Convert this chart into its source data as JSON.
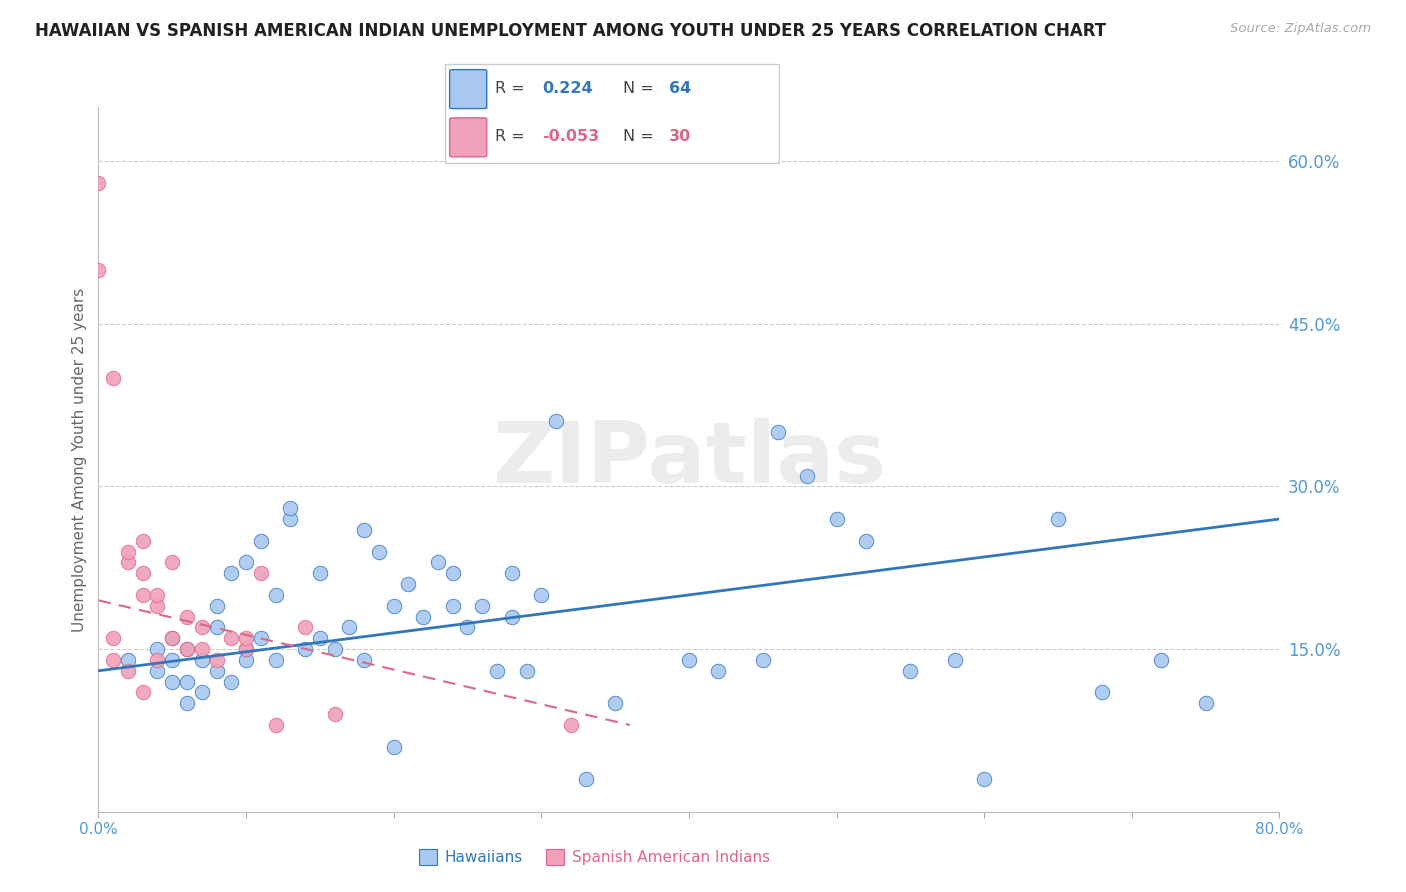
{
  "title": "HAWAIIAN VS SPANISH AMERICAN INDIAN UNEMPLOYMENT AMONG YOUTH UNDER 25 YEARS CORRELATION CHART",
  "source": "Source: ZipAtlas.com",
  "ylabel": "Unemployment Among Youth under 25 years",
  "xlim": [
    0.0,
    0.8
  ],
  "ylim": [
    0.0,
    0.65
  ],
  "yticks_right": [
    0.15,
    0.3,
    0.45,
    0.6
  ],
  "ytick_right_labels": [
    "15.0%",
    "30.0%",
    "45.0%",
    "60.0%"
  ],
  "R_hawaiian": 0.224,
  "N_hawaiian": 64,
  "R_spanish": -0.053,
  "N_spanish": 30,
  "hawaiian_color": "#a8c8f0",
  "spanish_color": "#f0a0b8",
  "trend_hawaiian_color": "#3377bb",
  "trend_spanish_color": "#dd6688",
  "watermark": "ZIPatlas",
  "hawaiians_x": [
    0.02,
    0.04,
    0.04,
    0.05,
    0.05,
    0.05,
    0.06,
    0.06,
    0.06,
    0.07,
    0.07,
    0.08,
    0.08,
    0.08,
    0.09,
    0.09,
    0.1,
    0.1,
    0.1,
    0.11,
    0.11,
    0.12,
    0.12,
    0.13,
    0.13,
    0.14,
    0.15,
    0.15,
    0.16,
    0.17,
    0.18,
    0.18,
    0.19,
    0.2,
    0.2,
    0.21,
    0.22,
    0.23,
    0.24,
    0.24,
    0.25,
    0.26,
    0.27,
    0.28,
    0.28,
    0.29,
    0.3,
    0.31,
    0.33,
    0.35,
    0.4,
    0.42,
    0.45,
    0.46,
    0.48,
    0.5,
    0.52,
    0.55,
    0.58,
    0.6,
    0.65,
    0.68,
    0.72,
    0.75
  ],
  "hawaiians_y": [
    0.14,
    0.15,
    0.13,
    0.12,
    0.14,
    0.16,
    0.1,
    0.12,
    0.15,
    0.11,
    0.14,
    0.13,
    0.17,
    0.19,
    0.12,
    0.22,
    0.14,
    0.15,
    0.23,
    0.16,
    0.25,
    0.14,
    0.2,
    0.27,
    0.28,
    0.15,
    0.16,
    0.22,
    0.15,
    0.17,
    0.14,
    0.26,
    0.24,
    0.06,
    0.19,
    0.21,
    0.18,
    0.23,
    0.19,
    0.22,
    0.17,
    0.19,
    0.13,
    0.18,
    0.22,
    0.13,
    0.2,
    0.36,
    0.03,
    0.1,
    0.14,
    0.13,
    0.14,
    0.35,
    0.31,
    0.27,
    0.25,
    0.13,
    0.14,
    0.03,
    0.27,
    0.11,
    0.14,
    0.1
  ],
  "spanish_x": [
    0.0,
    0.0,
    0.01,
    0.01,
    0.01,
    0.02,
    0.02,
    0.02,
    0.03,
    0.03,
    0.03,
    0.03,
    0.04,
    0.04,
    0.04,
    0.05,
    0.05,
    0.06,
    0.06,
    0.07,
    0.07,
    0.08,
    0.09,
    0.1,
    0.1,
    0.11,
    0.12,
    0.14,
    0.16,
    0.32
  ],
  "spanish_y": [
    0.58,
    0.5,
    0.4,
    0.16,
    0.14,
    0.23,
    0.24,
    0.13,
    0.2,
    0.22,
    0.25,
    0.11,
    0.19,
    0.2,
    0.14,
    0.23,
    0.16,
    0.15,
    0.18,
    0.15,
    0.17,
    0.14,
    0.16,
    0.15,
    0.16,
    0.22,
    0.08,
    0.17,
    0.09,
    0.08
  ],
  "trend_h_x0": 0.0,
  "trend_h_x1": 0.8,
  "trend_h_y0": 0.13,
  "trend_h_y1": 0.27,
  "trend_s_x0": 0.0,
  "trend_s_x1": 0.36,
  "trend_s_y0": 0.195,
  "trend_s_y1": 0.08
}
